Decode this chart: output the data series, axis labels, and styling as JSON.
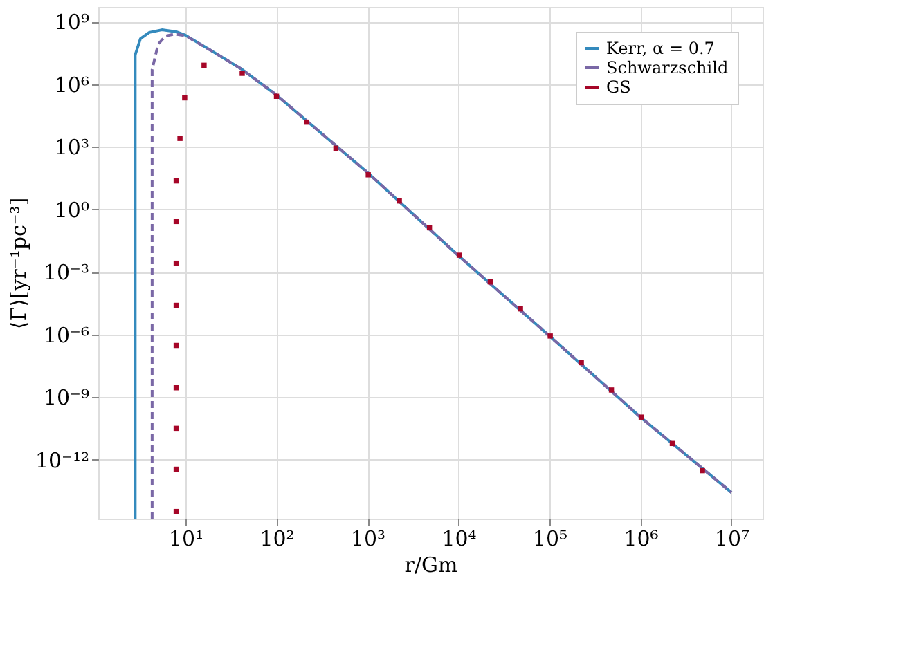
{
  "chart_data": {
    "type": "line",
    "xlabel": "r/Gm",
    "ylabel": "⟨Γ⟩[yr⁻¹pc⁻³]",
    "log": "xy",
    "grid": true,
    "legend": "top right",
    "xlim": [
      1.1,
      22000000.0
    ],
    "ylim": [
      1.5e-15,
      5000000000.0
    ],
    "xticks": [
      {
        "value": 10,
        "label": "10¹"
      },
      {
        "value": 100,
        "label": "10²"
      },
      {
        "value": 1000,
        "label": "10³"
      },
      {
        "value": 10000,
        "label": "10⁴"
      },
      {
        "value": 100000,
        "label": "10⁵"
      },
      {
        "value": 1000000,
        "label": "10⁶"
      },
      {
        "value": 10000000,
        "label": "10⁷"
      }
    ],
    "yticks": [
      {
        "value": 1000000000.0,
        "label": "10⁹"
      },
      {
        "value": 1000000.0,
        "label": "10⁶"
      },
      {
        "value": 1000.0,
        "label": "10³"
      },
      {
        "value": 1,
        "label": "10⁰"
      },
      {
        "value": 0.001,
        "label": "10⁻³"
      },
      {
        "value": 1e-06,
        "label": "10⁻⁶"
      },
      {
        "value": 1e-09,
        "label": "10⁻⁹"
      },
      {
        "value": 1e-12,
        "label": "10⁻¹²"
      }
    ],
    "series": [
      {
        "name": "Kerr, α = 0.7",
        "line_style": "solid",
        "color": "#348abd",
        "x": [
          2.8,
          2.8,
          3.2,
          4,
          5.5,
          8,
          10,
          20,
          42,
          100,
          1000,
          10000,
          100000,
          1000000,
          10000000
        ],
        "values": [
          1.5e-15,
          25000000.0,
          150000000.0,
          300000000.0,
          400000000.0,
          320000000.0,
          220000000.0,
          36000000.0,
          5000000.0,
          300000.0,
          58,
          0.006,
          8.5e-07,
          1.1e-10,
          2.7e-14
        ]
      },
      {
        "name": "Schwarzschild",
        "line_style": "dashed",
        "color": "#7a68a6",
        "x": [
          4.3,
          4.3,
          5,
          6,
          7.6,
          10,
          20,
          42,
          100,
          1000,
          10000,
          100000,
          1000000,
          10000000
        ],
        "values": [
          1.5e-15,
          5000000.0,
          80000000.0,
          200000000.0,
          250000000.0,
          210000000.0,
          36000000.0,
          5000000.0,
          300000.0,
          58,
          0.006,
          8.5e-07,
          1.1e-10,
          2.7e-14
        ]
      },
      {
        "name": "GS",
        "type": "scatter",
        "marker": "square",
        "color": "#a60628",
        "x": [
          7.9,
          7.9,
          7.9,
          7.9,
          7.9,
          7.9,
          7.9,
          7.9,
          7.9,
          8.7,
          9.8,
          16,
          42,
          100,
          215,
          450,
          1020,
          2240,
          4800,
          10200,
          22400,
          48000,
          102000,
          224000,
          480000,
          1020000,
          2240000,
          4800000
        ],
        "values": [
          3.3e-15,
          3.5e-13,
          3.2e-11,
          2.8e-09,
          3e-07,
          2.5e-05,
          0.0026,
          0.26,
          23,
          2500.0,
          220000.0,
          8000000.0,
          3300000.0,
          260000.0,
          15000.0,
          850,
          45,
          2.5,
          0.13,
          0.0063,
          0.00033,
          1.7e-05,
          8.5e-07,
          4.5e-08,
          2.2e-09,
          1.1e-10,
          6e-12,
          3e-13
        ]
      }
    ]
  }
}
